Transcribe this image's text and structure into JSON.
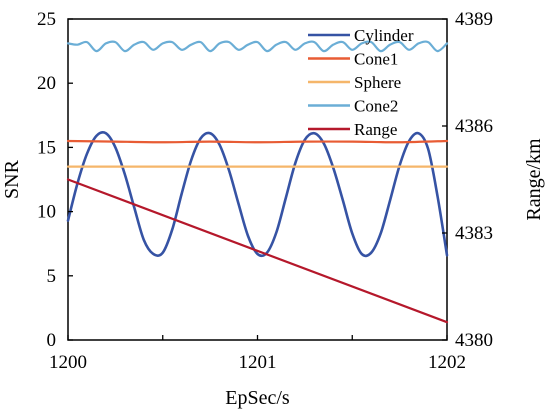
{
  "chart_data": {
    "type": "line",
    "xlabel": "EpSec/s",
    "ylabel_left": "SNR",
    "ylabel_right": "Range/km",
    "xlim": [
      1200,
      1202
    ],
    "ylim_left": [
      0,
      25
    ],
    "ylim_right": [
      4380,
      4389
    ],
    "x_ticks": [
      1200,
      1200.5,
      1201,
      1201.5,
      1202
    ],
    "x_tick_labels": [
      "1200",
      "",
      "1201",
      "",
      "1202"
    ],
    "y_left_ticks": [
      "0",
      "5",
      "10",
      "15",
      "20",
      "25"
    ],
    "y_right_ticks": [
      "4380",
      "4383",
      "4386",
      "4389"
    ],
    "legend_position": "top-right",
    "series": [
      {
        "name": "Cylinder",
        "axis": "left",
        "color": "#3653A4",
        "x": [
          1200.0,
          1200.05,
          1200.1,
          1200.15,
          1200.2,
          1200.25,
          1200.3,
          1200.35,
          1200.4,
          1200.45,
          1200.5,
          1200.55,
          1200.6,
          1200.65,
          1200.7,
          1200.75,
          1200.8,
          1200.85,
          1200.9,
          1200.95,
          1201.0,
          1201.05,
          1201.1,
          1201.15,
          1201.2,
          1201.25,
          1201.3,
          1201.35,
          1201.4,
          1201.45,
          1201.5,
          1201.55,
          1201.6,
          1201.65,
          1201.7,
          1201.75,
          1201.8,
          1201.85,
          1201.9,
          1201.95,
          1202.0
        ],
        "values": [
          9.3,
          12.2,
          14.5,
          15.9,
          16.1,
          15.0,
          12.9,
          10.3,
          7.8,
          6.7,
          6.8,
          8.6,
          11.4,
          14.0,
          15.7,
          16.1,
          15.2,
          13.2,
          10.6,
          8.1,
          6.7,
          6.8,
          8.4,
          11.1,
          13.8,
          15.6,
          16.1,
          15.3,
          13.4,
          10.9,
          8.3,
          6.7,
          6.8,
          8.3,
          10.9,
          13.6,
          15.5,
          16.1,
          14.9,
          11.2,
          6.6
        ]
      },
      {
        "name": "Cone1",
        "axis": "left",
        "color": "#E85C34",
        "x": [
          1200.0,
          1200.25,
          1200.5,
          1200.75,
          1201.0,
          1201.25,
          1201.5,
          1201.75,
          1202.0
        ],
        "values": [
          15.5,
          15.45,
          15.4,
          15.45,
          15.4,
          15.45,
          15.45,
          15.4,
          15.5
        ]
      },
      {
        "name": "Sphere",
        "axis": "left",
        "color": "#F5B66A",
        "x": [
          1200.0,
          1200.5,
          1201.0,
          1201.5,
          1202.0
        ],
        "values": [
          13.5,
          13.5,
          13.5,
          13.5,
          13.5
        ]
      },
      {
        "name": "Cone2",
        "axis": "left",
        "color": "#6BAED6",
        "x": [
          1200.0,
          1200.05,
          1200.1,
          1200.15,
          1200.2,
          1200.25,
          1200.3,
          1200.35,
          1200.4,
          1200.45,
          1200.5,
          1200.55,
          1200.6,
          1200.65,
          1200.7,
          1200.75,
          1200.8,
          1200.85,
          1200.9,
          1200.95,
          1201.0,
          1201.05,
          1201.1,
          1201.15,
          1201.2,
          1201.25,
          1201.3,
          1201.35,
          1201.4,
          1201.45,
          1201.5,
          1201.55,
          1201.6,
          1201.65,
          1201.7,
          1201.75,
          1201.8,
          1201.85,
          1201.9,
          1201.95,
          1202.0
        ],
        "values": [
          23.1,
          23.0,
          23.2,
          22.5,
          23.1,
          23.2,
          22.5,
          23.0,
          23.2,
          22.6,
          23.1,
          23.2,
          22.6,
          23.0,
          23.2,
          22.5,
          23.1,
          23.2,
          22.6,
          23.0,
          23.2,
          22.5,
          23.0,
          23.2,
          22.6,
          23.1,
          23.2,
          22.5,
          23.0,
          23.2,
          22.6,
          23.1,
          23.2,
          22.5,
          23.0,
          23.2,
          22.6,
          23.1,
          23.2,
          22.5,
          23.1
        ]
      },
      {
        "name": "Range",
        "axis": "right",
        "color": "#B5182B",
        "x": [
          1200,
          1202
        ],
        "values": [
          4384.5,
          4380.5
        ]
      }
    ]
  }
}
